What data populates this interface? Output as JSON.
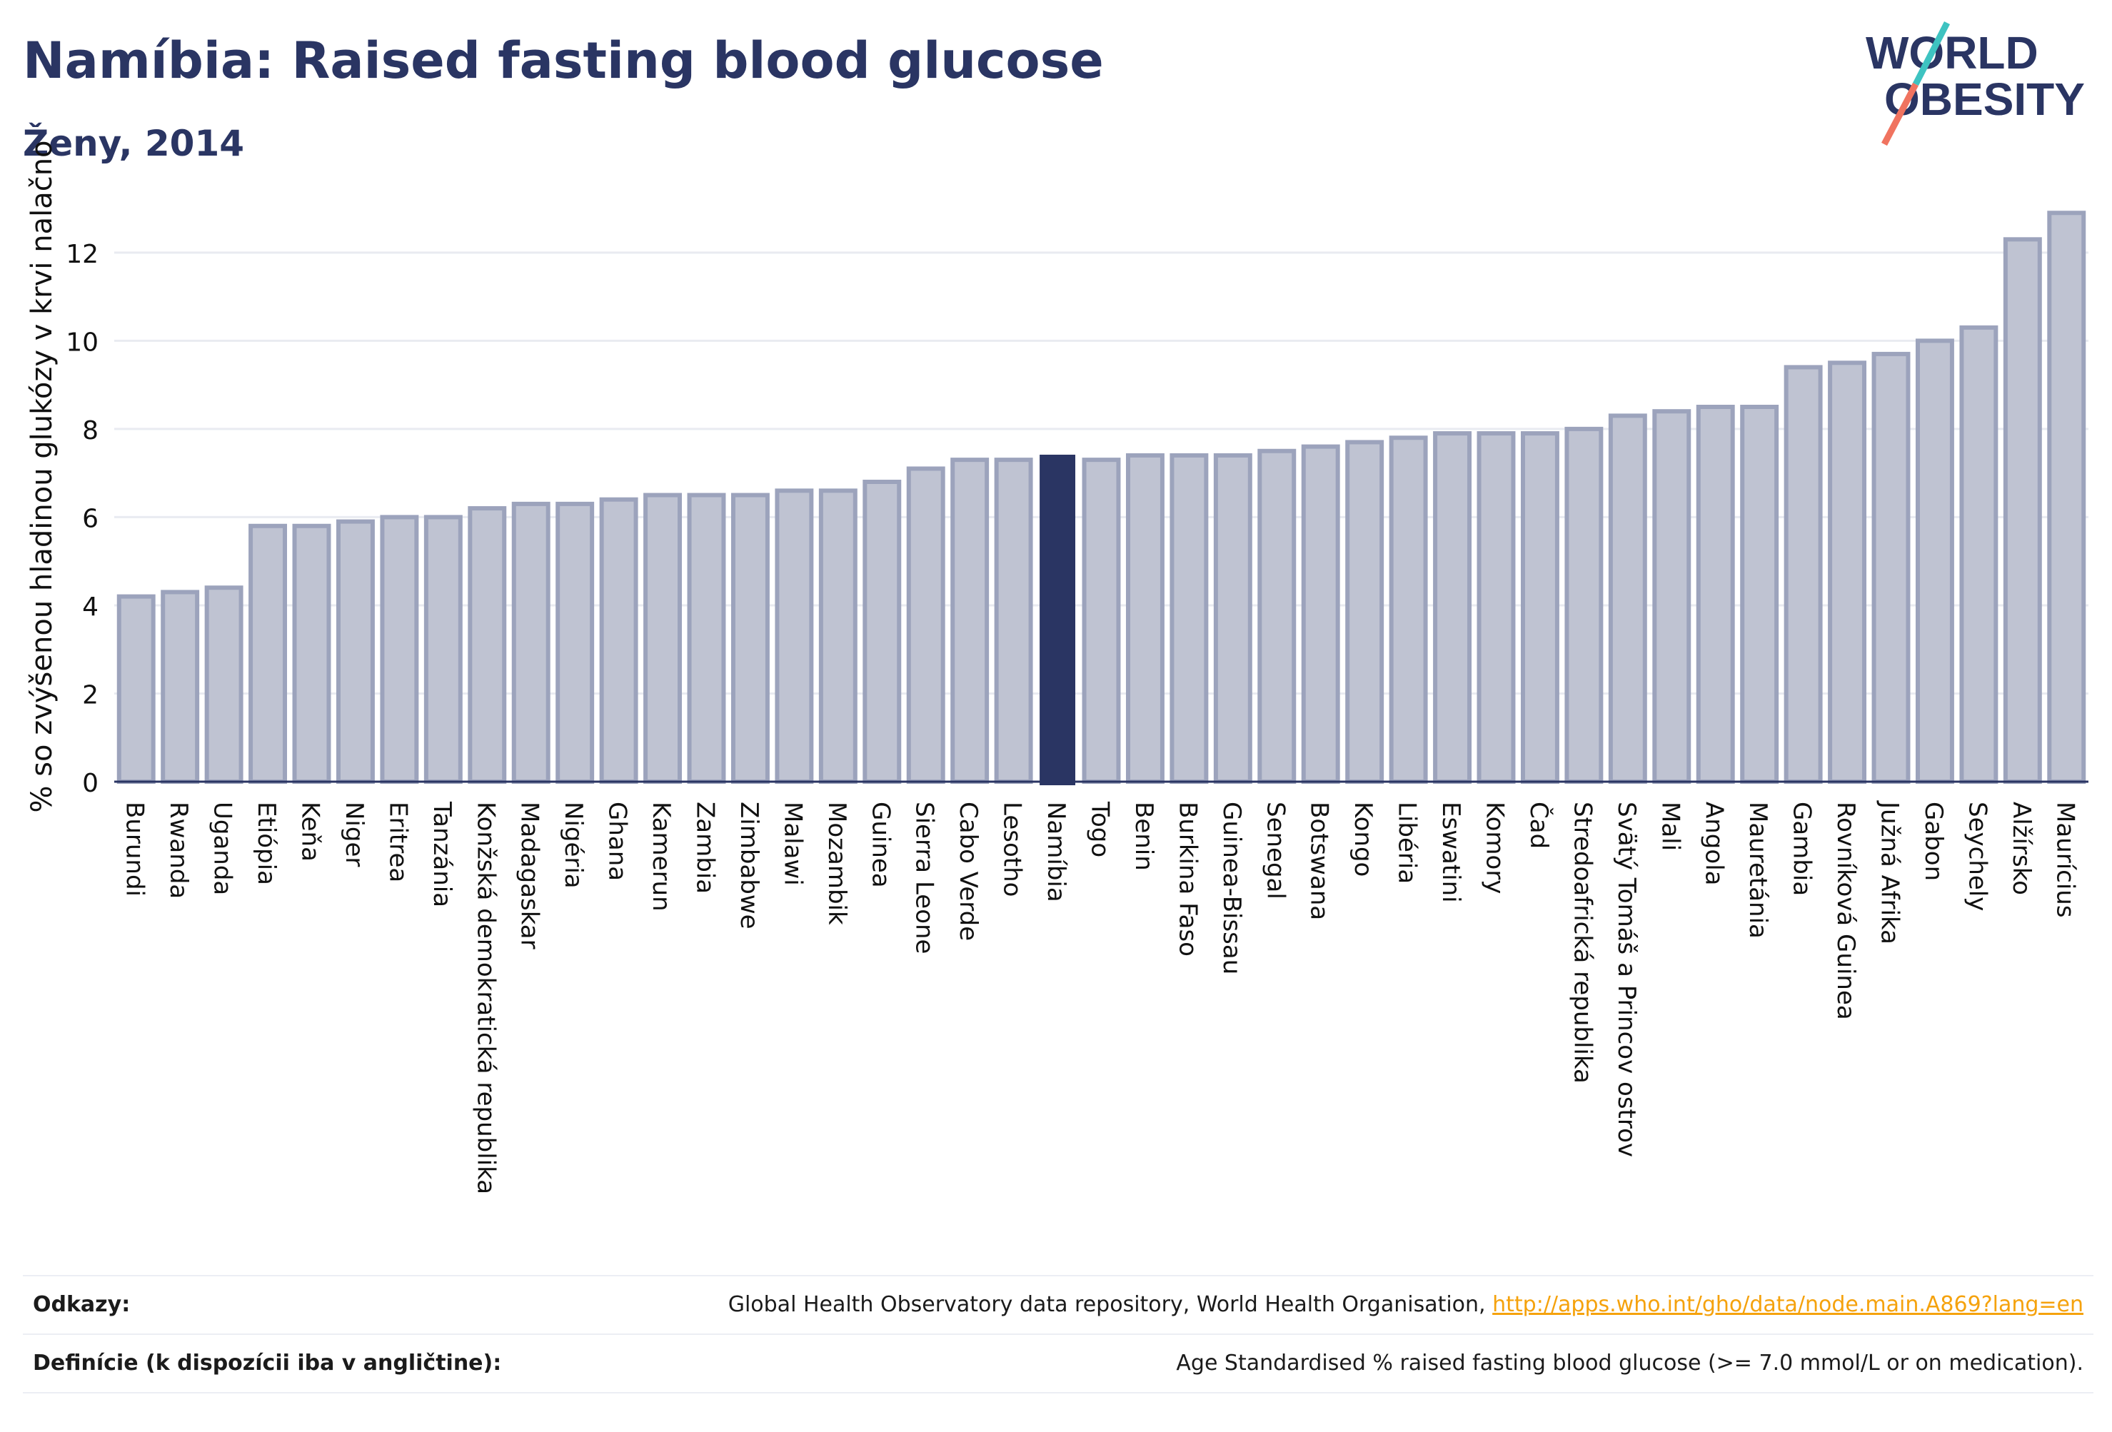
{
  "header": {
    "title": "Namíbia: Raised fasting blood glucose",
    "subtitle": "Ženy, 2014"
  },
  "logo": {
    "line1": "WORLD",
    "line2": "OBESITY",
    "text_color": "#2a3563",
    "slash_top_color": "#3ec3c1",
    "slash_bottom_color": "#f0735f"
  },
  "colors": {
    "bar": "#bfc3d2",
    "bar_border": "#9ca3bc",
    "highlight": "#2a3563",
    "grid": "#e9ebf1",
    "axis": "#2a3563",
    "link": "#f5a20d"
  },
  "chart_data": {
    "type": "bar",
    "title": "Namíbia: Raised fasting blood glucose",
    "subtitle": "Ženy, 2014",
    "xlabel": "",
    "ylabel": "% so zvýšenou hladinou glukózy v krvi nalačno",
    "ylim": [
      0,
      13.6
    ],
    "yticks": [
      0,
      2,
      4,
      6,
      8,
      10,
      12
    ],
    "grid": true,
    "highlight": "Namíbia",
    "categories": [
      "Burundi",
      "Rwanda",
      "Uganda",
      "Etiópia",
      "Keňa",
      "Niger",
      "Eritrea",
      "Tanzánia",
      "Konžská demokratická republika",
      "Madagaskar",
      "Nigéria",
      "Ghana",
      "Kamerun",
      "Zambia",
      "Zimbabwe",
      "Malawi",
      "Mozambik",
      "Guinea",
      "Sierra Leone",
      "Cabo Verde",
      "Lesotho",
      "Namíbia",
      "Togo",
      "Benin",
      "Burkina Faso",
      "Guinea-Bissau",
      "Senegal",
      "Botswana",
      "Kongo",
      "Libéria",
      "Eswatini",
      "Komory",
      "Čad",
      "Stredoafrická republika",
      "Svätý Tomáš a Princov ostrov",
      "Mali",
      "Angola",
      "Mauretánia",
      "Gambia",
      "Rovníková Guinea",
      "Južná Afrika",
      "Gabon",
      "Seychely",
      "Alžírsko",
      "Maurícius"
    ],
    "values": [
      4.2,
      4.3,
      4.4,
      5.8,
      5.8,
      5.9,
      6.0,
      6.0,
      6.2,
      6.3,
      6.3,
      6.4,
      6.5,
      6.5,
      6.5,
      6.6,
      6.6,
      6.8,
      7.1,
      7.3,
      7.3,
      7.4,
      7.3,
      7.4,
      7.4,
      7.4,
      7.5,
      7.6,
      7.7,
      7.8,
      7.9,
      7.9,
      7.9,
      8.0,
      8.3,
      8.4,
      8.5,
      8.5,
      9.4,
      9.5,
      9.7,
      10.0,
      10.3,
      12.3,
      12.9
    ]
  },
  "footer": {
    "references_label": "Odkazy:",
    "references_text": "Global Health Observatory data repository, World Health Organisation,",
    "references_link": "http://apps.who.int/gho/data/node.main.A869?lang=en",
    "definitions_label": "Definície (k dispozícii iba v angličtine):",
    "definitions_text": "Age Standardised % raised fasting blood glucose (>= 7.0 mmol/L or on medication)."
  }
}
